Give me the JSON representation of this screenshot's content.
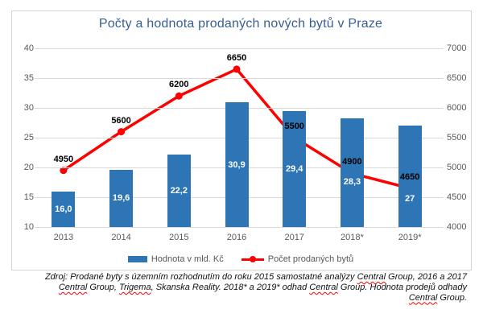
{
  "title": "Počty a hodnota prodaných nových bytů v Praze",
  "chart_data": {
    "type": "bar+line combo",
    "title": "Počty a hodnota prodaných nových bytů v Praze",
    "categories": [
      "2013",
      "2014",
      "2015",
      "2016",
      "2017",
      "2018*",
      "2019*"
    ],
    "series": [
      {
        "name": "Hodnota v mld. Kč",
        "type": "bar",
        "axis": "left",
        "color": "#2E75B6",
        "values": [
          16.0,
          19.6,
          22.2,
          30.9,
          29.4,
          28.3,
          27
        ],
        "labels": [
          "16,0",
          "19,6",
          "22,2",
          "30,9",
          "29,4",
          "28,3",
          "27"
        ],
        "label_color": "#ffffff"
      },
      {
        "name": "Počet prodaných bytů",
        "type": "line",
        "axis": "right",
        "color": "#FF0000",
        "values": [
          4950,
          5600,
          6200,
          6650,
          5500,
          4900,
          4650
        ],
        "labels": [
          "4950",
          "5600",
          "6200",
          "6650",
          "5500",
          "4900",
          "4650"
        ],
        "label_color": "#000000"
      }
    ],
    "left_axis": {
      "min": 10,
      "max": 40,
      "step": 5,
      "ticks": [
        "40",
        "35",
        "30",
        "25",
        "20",
        "15",
        "10"
      ]
    },
    "right_axis": {
      "min": 4000,
      "max": 7000,
      "step": 500,
      "ticks": [
        "7000",
        "6500",
        "6000",
        "5500",
        "5000",
        "4500",
        "4000"
      ]
    },
    "grid": true,
    "legend_position": "bottom",
    "layout_hints": {
      "bar_label_dy": [
        0,
        0,
        0,
        0,
        0,
        12,
        28
      ],
      "line_label_dy": -14
    }
  },
  "legend": {
    "items": [
      {
        "label": "Hodnota v mld. Kč",
        "swatch": "bar",
        "color": "#2E75B6"
      },
      {
        "label": "Počet prodaných bytů",
        "swatch": "line",
        "color": "#FF0000"
      }
    ]
  },
  "source_note": {
    "lines": [
      [
        {
          "t": "Zdroj: Prodané byty s územním rozhodnutím do roku 2015 samostatné analýzy "
        },
        {
          "t": "Central",
          "m": true
        },
        {
          "t": " Group, 2016 a 2017"
        }
      ],
      [
        {
          "t": "Central",
          "m": true
        },
        {
          "t": " Group, "
        },
        {
          "t": "Trigema",
          "m": true
        },
        {
          "t": ", Skanska Reality. 2018* a 2019* odhad "
        },
        {
          "t": "Central",
          "m": true
        },
        {
          "t": " Group. Hodnota prodejů odhady"
        }
      ],
      [
        {
          "t": "Central",
          "m": true
        },
        {
          "t": " Group."
        }
      ]
    ]
  },
  "colors": {
    "bar": "#2E75B6",
    "line": "#FF0000",
    "gridline": "#d9d9d9",
    "axis_text": "#595959",
    "title_text": "#365F91",
    "frame_border": "#d4d4d4",
    "squiggle": "#FF0000"
  }
}
